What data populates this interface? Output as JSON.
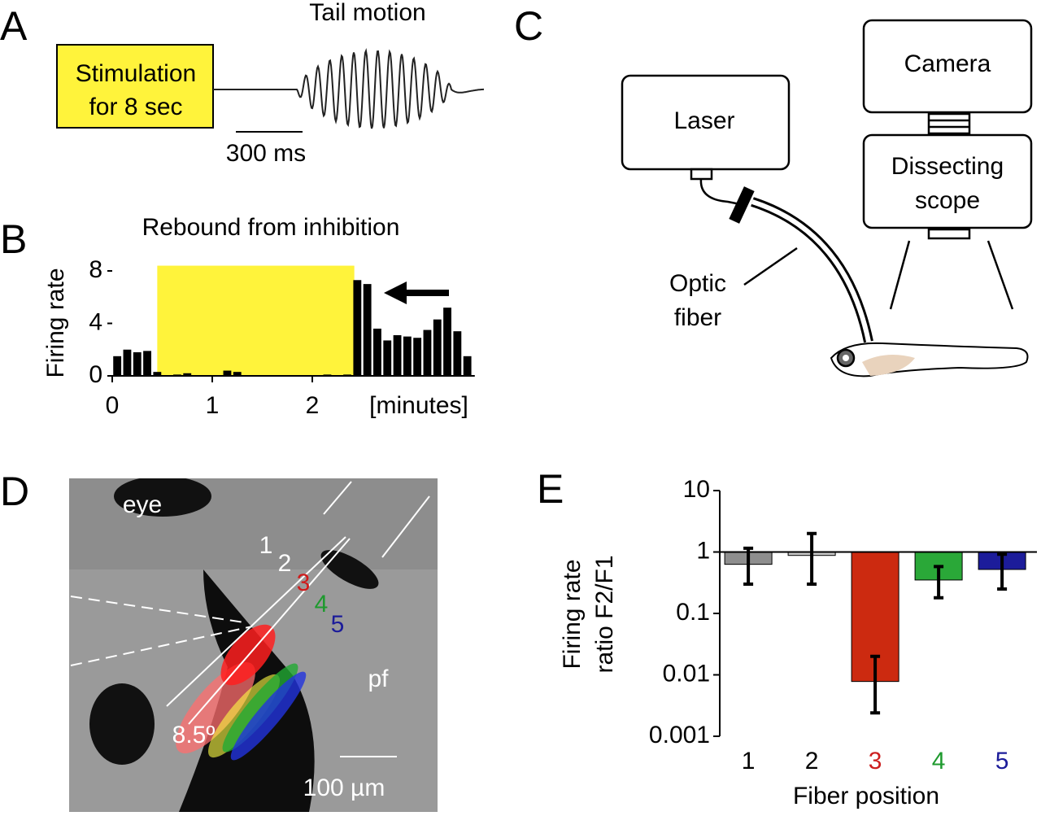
{
  "panel_labels": [
    "A",
    "B",
    "C",
    "D",
    "E"
  ],
  "panel_a": {
    "box": [
      "Stimulation",
      "for 8 sec"
    ],
    "title": "Tail motion",
    "scale": "300 ms"
  },
  "panel_c": {
    "laser": "Laser",
    "camera": "Camera",
    "scope": [
      "Dissecting",
      "scope"
    ],
    "fiber": [
      "Optic",
      "fiber"
    ]
  },
  "panel_d": {
    "eye": "eye",
    "positions": [
      "1",
      "2",
      "3",
      "4",
      "5"
    ],
    "pf": "pf",
    "angle": "8.5º",
    "scale": "100 µm"
  },
  "chart_data": [
    {
      "type": "histogram",
      "title": "Rebound from inhibition",
      "ylabel": "Firing rate",
      "xlabel": "[minutes]",
      "bins": [
        0,
        0.1,
        0.2,
        0.3,
        0.4,
        0.5,
        0.6,
        0.7,
        0.8,
        0.9,
        1,
        1.1,
        1.2,
        1.3,
        1.4,
        1.5,
        1.6,
        1.7,
        1.8,
        1.9,
        2,
        2.1,
        2.2,
        2.3,
        2.4,
        2.5,
        2.6,
        2.7,
        2.8,
        2.9,
        3,
        3.1,
        3.2,
        3.3,
        3.4,
        3.5,
        3.6
      ],
      "values": [
        1.5,
        2.0,
        1.8,
        1.9,
        0.3,
        0,
        0.1,
        0.2,
        0,
        0,
        0,
        0.4,
        0.3,
        0,
        0,
        0,
        0,
        0,
        0,
        0,
        0,
        0.1,
        0,
        0.1,
        7.3,
        7.0,
        3.6,
        2.7,
        3.1,
        3.0,
        2.9,
        3.5,
        4.3,
        5.2,
        3.4,
        1.5
      ],
      "color": "#000000",
      "highlight_x": [
        0.45,
        2.42
      ],
      "highlight_color": "#fff33b",
      "xlim": [
        0,
        3.6
      ],
      "ylim": [
        0,
        8.4
      ],
      "xticks": [
        0,
        1,
        2
      ],
      "yticks": [
        0,
        4,
        8
      ]
    },
    {
      "type": "bar",
      "ylabel": [
        "Firing rate",
        "ratio F2/F1"
      ],
      "xlabel": "Fiber position",
      "log_scale": true,
      "categories": [
        "1",
        "2",
        "3",
        "4",
        "5"
      ],
      "values": [
        0.63,
        0.88,
        0.0078,
        0.35,
        0.52
      ],
      "error_low": [
        0.3,
        0.3,
        0.0024,
        0.18,
        0.25
      ],
      "error_high": [
        1.15,
        2.0,
        0.02,
        0.58,
        0.92
      ],
      "colors": [
        "#8e8e8e",
        "#c9c9c9",
        "#cc2a10",
        "#2aa838",
        "#1c1c9a"
      ],
      "label_colors": [
        "#000000",
        "#000000",
        "#cc1f1f",
        "#1e9a2e",
        "#1c1c9a"
      ],
      "ylim": [
        0.001,
        10
      ],
      "yticks": [
        0.001,
        0.01,
        0.1,
        1,
        10
      ]
    }
  ]
}
